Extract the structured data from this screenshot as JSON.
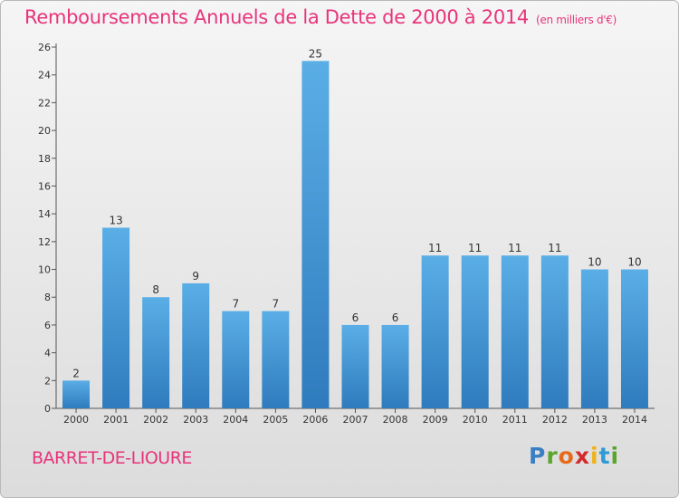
{
  "chart_data": {
    "type": "bar",
    "title": "Remboursements Annuels de la Dette de 2000 à 2014",
    "subtitle": "(en milliers d'€)",
    "categories": [
      "2000",
      "2001",
      "2002",
      "2003",
      "2004",
      "2005",
      "2006",
      "2007",
      "2008",
      "2009",
      "2010",
      "2011",
      "2012",
      "2013",
      "2014"
    ],
    "values": [
      2,
      13,
      8,
      9,
      7,
      7,
      25,
      6,
      6,
      11,
      11,
      11,
      11,
      10,
      10
    ],
    "ylim": [
      0,
      26
    ],
    "yticks": [
      0,
      2,
      4,
      6,
      8,
      10,
      12,
      14,
      16,
      18,
      20,
      22,
      24,
      26
    ],
    "grid": false,
    "bar_color_top": "#5aaee6",
    "bar_color_bottom": "#2f7bbd"
  },
  "footer": {
    "place": "BARRET-DE-LIOURE",
    "logo_letters": [
      "P",
      "r",
      "o",
      "x",
      "i",
      "t",
      "i"
    ]
  },
  "colors": {
    "title": "#e8347a",
    "axis": "#333333"
  }
}
